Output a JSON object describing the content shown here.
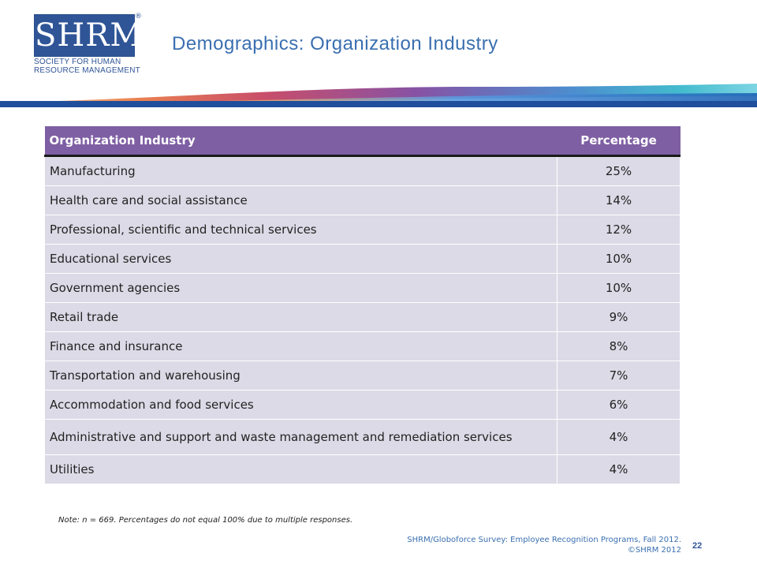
{
  "logo": {
    "mark": "SHRM",
    "registered": "®",
    "line1": "SOCIETY FOR HUMAN",
    "line2": "RESOURCE MANAGEMENT"
  },
  "slide": {
    "title": "Demographics: Organization Industry",
    "page_number": "22"
  },
  "table": {
    "headers": [
      "Organization Industry",
      "Percentage"
    ],
    "rows": [
      [
        "Manufacturing",
        "25%"
      ],
      [
        "Health care and social assistance",
        "14%"
      ],
      [
        "Professional, scientific and technical services",
        "12%"
      ],
      [
        "Educational services",
        "10%"
      ],
      [
        "Government agencies",
        "10%"
      ],
      [
        "Retail trade",
        "9%"
      ],
      [
        "Finance and insurance",
        "8%"
      ],
      [
        "Transportation and warehousing",
        "7%"
      ],
      [
        "Accommodation and food services",
        "6%"
      ],
      [
        "Administrative and support and waste management and remediation services",
        "4%"
      ],
      [
        "Utilities",
        "4%"
      ]
    ]
  },
  "footer": {
    "note": "Note: n = 669. Percentages do not equal 100% due to multiple responses.",
    "source_line1": "SHRM/Globoforce Survey: Employee Recognition Programs, Fall 2012.",
    "source_line2": "©SHRM 2012"
  },
  "colors": {
    "header_bg": "#7e5fa3",
    "row_bg": "#dcdae6",
    "brand_blue": "#2f5597",
    "title_blue": "#3a6fb0"
  }
}
